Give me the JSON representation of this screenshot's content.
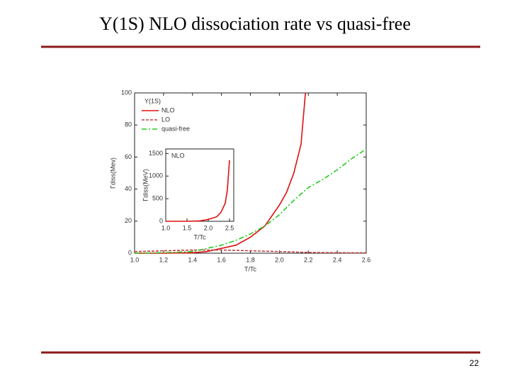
{
  "header": {
    "title": "Y(1S) NLO dissociation rate vs quasi-free"
  },
  "footer": {
    "page": "22"
  },
  "chart_data": [
    {
      "type": "line",
      "xlabel": "T/Tc",
      "ylabel": "Γdiss(Mev)",
      "xlim": [
        1.0,
        2.6
      ],
      "ylim": [
        0,
        100
      ],
      "xticks": [
        {
          "value": 1.0,
          "label": "1.0"
        },
        1.2,
        1.4,
        1.6,
        1.8,
        {
          "value": 2.0,
          "label": "2.0"
        },
        2.2,
        2.4,
        2.6
      ],
      "yticks": [
        0,
        20,
        40,
        60,
        80,
        100
      ],
      "legend": "upper left",
      "legend_title": "Y(1S)",
      "series": [
        {
          "name": "NLO",
          "color": "#e01010",
          "linestyle": "solid",
          "x": [
            1.0,
            1.2,
            1.4,
            1.5,
            1.6,
            1.7,
            1.8,
            1.9,
            2.0,
            2.05,
            2.1,
            2.15,
            2.18
          ],
          "values": [
            0,
            0,
            0.3,
            1,
            3,
            5,
            10,
            17,
            30,
            38,
            50,
            68,
            100
          ]
        },
        {
          "name": "LO",
          "color": "#c04040",
          "linestyle": "dashed",
          "x": [
            1.0,
            1.2,
            1.4,
            1.6,
            1.8,
            2.0,
            2.2,
            2.4,
            2.6
          ],
          "values": [
            1,
            1.5,
            2,
            2,
            1.5,
            1,
            0.5,
            0.3,
            0.2
          ]
        },
        {
          "name": "quasi-free",
          "color": "#22cc22",
          "linestyle": "dashdot",
          "x": [
            1.0,
            1.2,
            1.4,
            1.5,
            1.6,
            1.7,
            1.8,
            1.9,
            2.0,
            2.1,
            2.2,
            2.3,
            2.4,
            2.5,
            2.6
          ],
          "values": [
            0,
            0.3,
            1,
            3,
            5,
            8,
            12,
            17,
            24,
            33,
            41,
            46,
            52,
            59,
            65
          ]
        }
      ]
    },
    {
      "type": "line",
      "annotation": "NLO",
      "xlabel": "T/Tc",
      "ylabel": "Γdiss(MeV)",
      "xlim": [
        1.0,
        2.6
      ],
      "ylim": [
        0,
        1600
      ],
      "xticks": [
        {
          "value": 1.0,
          "label": "1.0"
        },
        1.5,
        {
          "value": 2.0,
          "label": "2.0"
        },
        2.5
      ],
      "yticks": [
        0,
        500,
        1000,
        1500
      ],
      "series": [
        {
          "color": "#e01010",
          "linestyle": "solid",
          "x": [
            1.0,
            1.5,
            1.8,
            2.0,
            2.2,
            2.3,
            2.4,
            2.45,
            2.5
          ],
          "values": [
            0,
            0,
            10,
            40,
            100,
            200,
            400,
            700,
            1350
          ]
        }
      ]
    }
  ]
}
